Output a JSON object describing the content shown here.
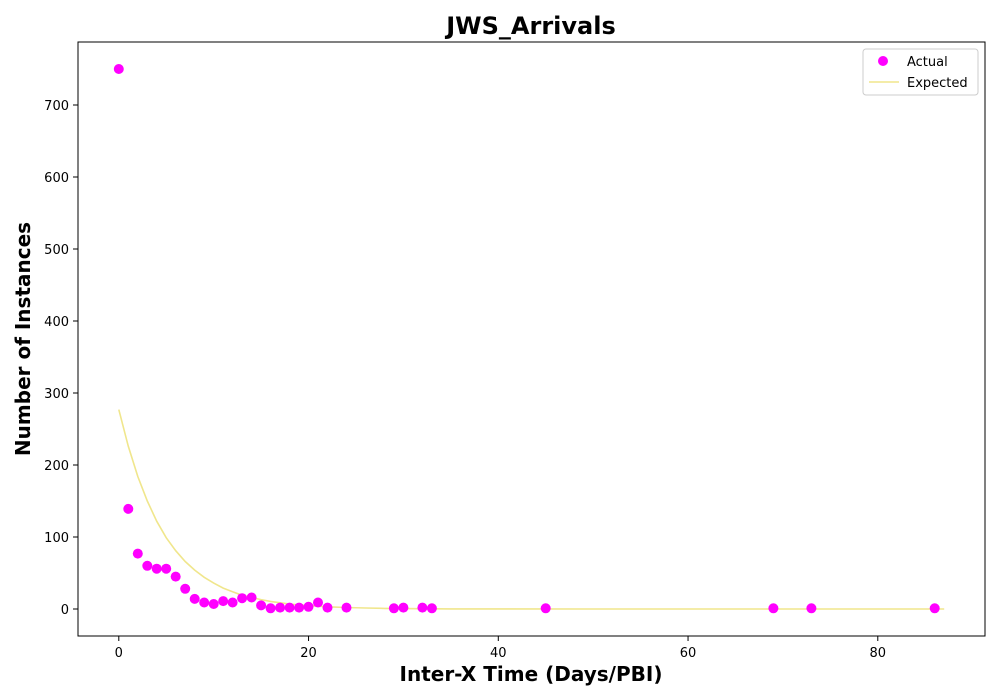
{
  "chart_data": {
    "type": "scatter",
    "title": "JWS_Arrivals",
    "xlabel": "Inter-X Time (Days/PBI)",
    "ylabel": "Number of Instances",
    "xlim": [
      -4.3,
      91.3
    ],
    "ylim": [
      -37.5,
      787.5
    ],
    "xticks": [
      0,
      20,
      40,
      60,
      80
    ],
    "yticks": [
      0,
      100,
      200,
      300,
      400,
      500,
      600,
      700
    ],
    "grid": false,
    "legend_position": "top-right",
    "colors": {
      "actual": "#ff00ff",
      "expected": "#f0e68c"
    },
    "series": [
      {
        "name": "Actual",
        "kind": "scatter",
        "x": [
          0,
          1,
          2,
          3,
          4,
          5,
          6,
          7,
          8,
          9,
          10,
          11,
          12,
          13,
          14,
          15,
          16,
          17,
          18,
          19,
          20,
          21,
          22,
          24,
          29,
          30,
          32,
          33,
          45,
          69,
          73,
          86
        ],
        "y": [
          750,
          139,
          77,
          60,
          56,
          56,
          45,
          28,
          14,
          9,
          7,
          11,
          9,
          15,
          16,
          5,
          1,
          2,
          2,
          2,
          3,
          9,
          2,
          2,
          1,
          2,
          2,
          1,
          1,
          1,
          1,
          1
        ]
      },
      {
        "name": "Expected",
        "kind": "line",
        "x": [
          0,
          1,
          2,
          3,
          4,
          5,
          6,
          7,
          8,
          9,
          10,
          11,
          12,
          13,
          14,
          15,
          16,
          17,
          18,
          19,
          20,
          22,
          24,
          26,
          28,
          30,
          35,
          40,
          50,
          60,
          70,
          80,
          87
        ],
        "y": [
          277,
          226,
          184,
          150,
          122,
          99,
          81,
          66,
          54,
          44,
          36,
          29,
          24,
          19,
          16,
          13,
          10.6,
          8.6,
          7,
          5.7,
          4.7,
          3.1,
          2.1,
          1.4,
          0.9,
          0.6,
          0.2,
          0.1,
          0,
          0,
          0,
          0,
          0
        ]
      }
    ]
  }
}
